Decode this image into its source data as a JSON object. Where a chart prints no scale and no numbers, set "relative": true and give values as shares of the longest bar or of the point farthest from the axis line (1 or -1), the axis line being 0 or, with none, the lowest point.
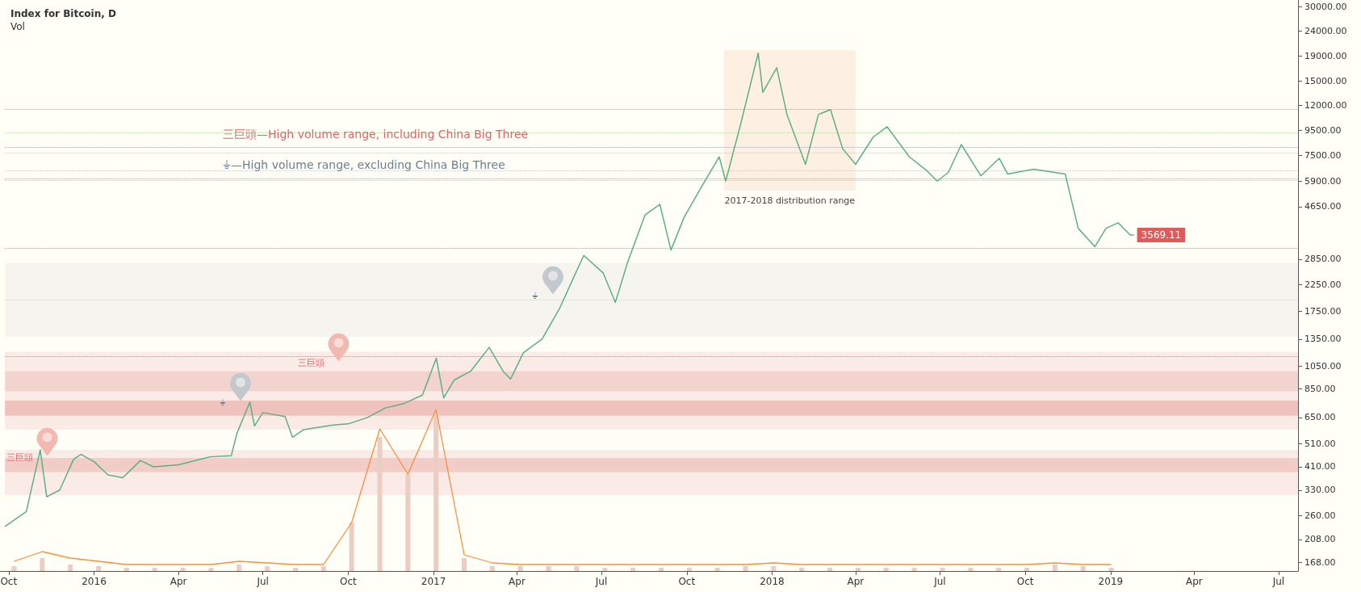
{
  "chart_data": [
    {
      "type": "line",
      "title": "Index for Bitcoin, D",
      "x": [
        "2015-09-27",
        "2015-10-20",
        "2015-11-04",
        "2015-11-11",
        "2015-11-25",
        "2015-12-10",
        "2015-12-18",
        "2016-01-01",
        "2016-01-16",
        "2016-02-01",
        "2016-02-20",
        "2016-03-05",
        "2016-04-01",
        "2016-05-05",
        "2016-05-28",
        "2016-06-03",
        "2016-06-17",
        "2016-06-22",
        "2016-07-01",
        "2016-07-25",
        "2016-08-02",
        "2016-08-14",
        "2016-09-15",
        "2016-10-01",
        "2016-10-22",
        "2016-11-10",
        "2016-11-30",
        "2016-12-20",
        "2017-01-04",
        "2017-01-12",
        "2017-01-23",
        "2017-02-10",
        "2017-03-02",
        "2017-03-17",
        "2017-03-25",
        "2017-04-08",
        "2017-04-28",
        "2017-05-17",
        "2017-06-01",
        "2017-06-12",
        "2017-07-03",
        "2017-07-16",
        "2017-07-29",
        "2017-08-17",
        "2017-09-02",
        "2017-09-14",
        "2017-09-28",
        "2017-10-17",
        "2017-11-05",
        "2017-11-12",
        "2017-11-28",
        "2017-12-17",
        "2017-12-22",
        "2018-01-06",
        "2018-01-17",
        "2018-02-06",
        "2018-02-20",
        "2018-03-05",
        "2018-03-18",
        "2018-04-01",
        "2018-04-20",
        "2018-05-05",
        "2018-05-29",
        "2018-06-17",
        "2018-06-28",
        "2018-07-10",
        "2018-07-24",
        "2018-08-14",
        "2018-09-03",
        "2018-09-12",
        "2018-10-10",
        "2018-11-13",
        "2018-11-27",
        "2018-12-15",
        "2018-12-27",
        "2019-01-09",
        "2019-01-22",
        "2019-01-26"
      ],
      "series": [
        {
          "color": "#5fae86",
          "values": [
            235,
            270,
            480,
            310,
            330,
            440,
            460,
            430,
            380,
            370,
            435,
            410,
            418,
            450,
            455,
            560,
            750,
            600,
            680,
            655,
            540,
            580,
            605,
            612,
            650,
            710,
            740,
            800,
            1130,
            780,
            920,
            1000,
            1250,
            1000,
            930,
            1190,
            1350,
            1800,
            2400,
            2950,
            2500,
            1900,
            2750,
            4300,
            4750,
            3100,
            4200,
            5600,
            7400,
            5900,
            10000,
            19500,
            13500,
            17000,
            11000,
            6900,
            11000,
            11500,
            8000,
            6900,
            8900,
            9800,
            7400,
            6500,
            5900,
            6400,
            8300,
            6200,
            7300,
            6300,
            6600,
            6300,
            3800,
            3200,
            3800,
            4000,
            3570,
            3569.11
          ],
          "value_labels": [
            null,
            null,
            null,
            null,
            null,
            null,
            null,
            null,
            null,
            null,
            null,
            null,
            null,
            null,
            null,
            null,
            null,
            null,
            null,
            null,
            null,
            null,
            null,
            null,
            null,
            null,
            null,
            null,
            null,
            null,
            null,
            null,
            null,
            null,
            null,
            null,
            null,
            null,
            null,
            null,
            null,
            null,
            null,
            null,
            null,
            null,
            null,
            null,
            null,
            null,
            null,
            null,
            null,
            null,
            null,
            null,
            null,
            null,
            null,
            null,
            null,
            null,
            null,
            null,
            null,
            null,
            null,
            null,
            null,
            null,
            null,
            null,
            null,
            null,
            null,
            null,
            null,
            "3569.11"
          ]
        }
      ],
      "log": "y",
      "ylim": [
        155,
        32000
      ],
      "yticks": [
        {
          "value": 168,
          "label": "168.00"
        },
        {
          "value": 208,
          "label": "208.00"
        },
        {
          "value": 260,
          "label": "260.00"
        },
        {
          "value": 330,
          "label": "330.00"
        },
        {
          "value": 410,
          "label": "410.00"
        },
        {
          "value": 510,
          "label": "510.00"
        },
        {
          "value": 650,
          "label": "650.00"
        },
        {
          "value": 850,
          "label": "850.00"
        },
        {
          "value": 1050,
          "label": "1050.00"
        },
        {
          "value": 1350,
          "label": "1350.00"
        },
        {
          "value": 1750,
          "label": "1750.00"
        },
        {
          "value": 2250,
          "label": "2250.00"
        },
        {
          "value": 2850,
          "label": "2850.00"
        },
        {
          "value": 4650,
          "label": "4650.00"
        },
        {
          "value": 5900,
          "label": "5900.00"
        },
        {
          "value": 7500,
          "label": "7500.00"
        },
        {
          "value": 9500,
          "label": "9500.00"
        },
        {
          "value": 12000,
          "label": "12000.00"
        },
        {
          "value": 15000,
          "label": "15000.00"
        },
        {
          "value": 19000,
          "label": "19000.00"
        },
        {
          "value": 24000,
          "label": "24000.00"
        },
        {
          "value": 30000,
          "label": "30000.00"
        }
      ],
      "xlim": [
        "2015-09-27",
        "2019-07-22"
      ],
      "xticks": [
        {
          "value": "2015-10-01",
          "label": "Oct"
        },
        {
          "value": "2016-01-01",
          "label": "2016"
        },
        {
          "value": "2016-04-01",
          "label": "Apr"
        },
        {
          "value": "2016-07-01",
          "label": "Jul"
        },
        {
          "value": "2016-10-01",
          "label": "Oct"
        },
        {
          "value": "2017-01-01",
          "label": "2017"
        },
        {
          "value": "2017-04-01",
          "label": "Apr"
        },
        {
          "value": "2017-07-01",
          "label": "Jul"
        },
        {
          "value": "2017-10-01",
          "label": "Oct"
        },
        {
          "value": "2018-01-01",
          "label": "2018"
        },
        {
          "value": "2018-04-01",
          "label": "Apr"
        },
        {
          "value": "2018-07-01",
          "label": "Jul"
        },
        {
          "value": "2018-10-01",
          "label": "Oct"
        },
        {
          "value": "2019-01-01",
          "label": "2019"
        },
        {
          "value": "2019-04-01",
          "label": "Apr"
        },
        {
          "value": "2019-07-01",
          "label": "Jul"
        }
      ],
      "grid": false,
      "marker": "none",
      "bands": [
        {
          "axis": "y",
          "from": 315,
          "to": 480,
          "color": "#faebe6"
        },
        {
          "axis": "y",
          "from": 390,
          "to": 445,
          "color": "#f2cdc8"
        },
        {
          "axis": "y",
          "from": 580,
          "to": 1200,
          "color": "#faebe6"
        },
        {
          "axis": "y",
          "from": 660,
          "to": 760,
          "color": "#efc2bd"
        },
        {
          "axis": "y",
          "from": 830,
          "to": 1000,
          "color": "#f3d3ce"
        },
        {
          "axis": "y",
          "from": 1380,
          "to": 2750,
          "color": "#f6f4ee"
        },
        {
          "axis": "x",
          "from": "2017-11-10",
          "to": "2018-04-01",
          "label": "2017-2018 distribution range",
          "color": "#fdf0e2"
        }
      ],
      "ref_lines": [
        {
          "axis": "y",
          "value": 11500,
          "color": "#a0a4aa",
          "line_style": "dotted"
        },
        {
          "axis": "y",
          "value": 9300,
          "color": "#b9d8a8",
          "line_style": "dotted"
        },
        {
          "axis": "y",
          "value": 8100,
          "color": "#a0a4aa",
          "line_style": "dotted"
        },
        {
          "axis": "y",
          "value": 7700,
          "color": "#b9d8a8",
          "line_style": "dotted"
        },
        {
          "axis": "y",
          "value": 6500,
          "color": "#b9d8a8",
          "line_style": "dotted"
        },
        {
          "axis": "y",
          "value": 6050,
          "color": "#a0a4aa",
          "line_style": "dotted"
        },
        {
          "axis": "y",
          "value": 5950,
          "color": "#b9d8a8",
          "line_style": "dotted"
        },
        {
          "axis": "y",
          "value": 3150,
          "color": "#a0a4aa",
          "line_style": "dotted"
        },
        {
          "axis": "y",
          "value": 1950,
          "color": "#f2c9a6",
          "line_style": "dotted"
        },
        {
          "axis": "y",
          "value": 1150,
          "color": "#e07a7a",
          "line_style": "dotted"
        }
      ],
      "annotations": [
        "三巨頭—High volume range, including China Big Three",
        "⏚—High volume range, excluding China Big Three",
        "三巨頭",
        "⏚",
        "三巨頭",
        "⏚"
      ]
    },
    {
      "type": "bar",
      "title": "Vol",
      "relative": true,
      "categories": [
        null,
        null,
        null,
        null,
        null,
        null,
        null,
        null,
        null,
        null,
        null,
        null,
        null,
        null,
        null,
        null,
        null,
        null,
        null,
        null,
        null,
        null,
        null,
        null,
        null,
        null,
        null,
        null,
        null,
        null,
        null,
        null,
        null,
        null,
        null,
        null,
        null,
        null,
        null,
        null
      ],
      "series": [
        {
          "color": "#eccdc4",
          "values": [
            0.03,
            0.08,
            0.04,
            0.03,
            0.02,
            0.02,
            0.02,
            0.02,
            0.04,
            0.03,
            0.02,
            0.03,
            0.3,
            0.83,
            0.6,
            1.0,
            0.08,
            0.03,
            0.03,
            0.03,
            0.03,
            0.02,
            0.02,
            0.02,
            0.02,
            0.02,
            0.03,
            0.03,
            0.02,
            0.02,
            0.02,
            0.02,
            0.02,
            0.02,
            0.02,
            0.02,
            0.02,
            0.04,
            0.03,
            0.02
          ]
        }
      ]
    },
    {
      "type": "line",
      "relative": true,
      "categories": [
        null,
        null,
        null,
        null,
        null,
        null,
        null,
        null,
        null,
        null,
        null,
        null,
        null,
        null,
        null,
        null,
        null,
        null,
        null,
        null,
        null,
        null,
        null,
        null,
        null,
        null,
        null,
        null,
        null,
        null,
        null,
        null,
        null,
        null,
        null,
        null,
        null,
        null,
        null,
        null
      ],
      "series": [
        {
          "color": "#f7913c",
          "values": [
            0.06,
            0.12,
            0.08,
            0.06,
            0.04,
            0.04,
            0.04,
            0.04,
            0.06,
            0.05,
            0.04,
            0.04,
            0.3,
            0.88,
            0.6,
            1.0,
            0.1,
            0.05,
            0.04,
            0.04,
            0.04,
            0.04,
            0.04,
            0.04,
            0.04,
            0.04,
            0.04,
            0.05,
            0.04,
            0.04,
            0.04,
            0.04,
            0.04,
            0.04,
            0.04,
            0.04,
            0.04,
            0.05,
            0.04,
            0.04
          ]
        }
      ]
    }
  ]
}
